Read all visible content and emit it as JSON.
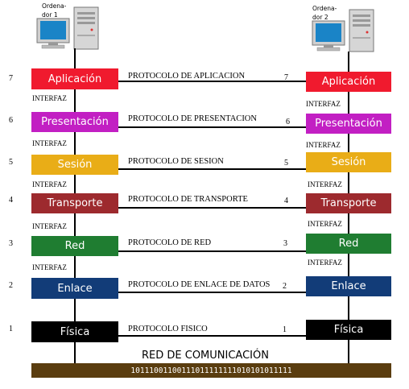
{
  "computers": {
    "left": {
      "label": "Ordena-\ndor 1"
    },
    "right": {
      "label": "Ordena-\ndor 2"
    }
  },
  "interface_label": "INTERFAZ",
  "layers": [
    {
      "number": "7",
      "name": "Aplicación",
      "protocol": "PROTOCOLO DE APLICACION",
      "color": "#f01a2e"
    },
    {
      "number": "6",
      "name": "Presentación",
      "protocol": "PROTOCOLO DE PRESENTACION",
      "color": "#c21fc3"
    },
    {
      "number": "5",
      "name": "Sesión",
      "protocol": "PROTOCOLO DE SESION",
      "color": "#e9ad17"
    },
    {
      "number": "4",
      "name": "Transporte",
      "protocol": "PROTOCOLO DE TRANSPORTE",
      "color": "#9d2a2e"
    },
    {
      "number": "3",
      "name": "Red",
      "protocol": "PROTOCOLO DE RED",
      "color": "#1f7d31"
    },
    {
      "number": "2",
      "name": "Enlace",
      "protocol": "PROTOCOLO DE ENLACE DE DATOS",
      "color": "#123c78"
    },
    {
      "number": "1",
      "name": "Física",
      "protocol": "PROTOCOLO FISICO",
      "color": "#000000"
    }
  ],
  "network": {
    "title": "RED DE COMUNICACIÓN",
    "bits": "10111001100111011111111010101011111",
    "color": "#5a3d0f"
  }
}
